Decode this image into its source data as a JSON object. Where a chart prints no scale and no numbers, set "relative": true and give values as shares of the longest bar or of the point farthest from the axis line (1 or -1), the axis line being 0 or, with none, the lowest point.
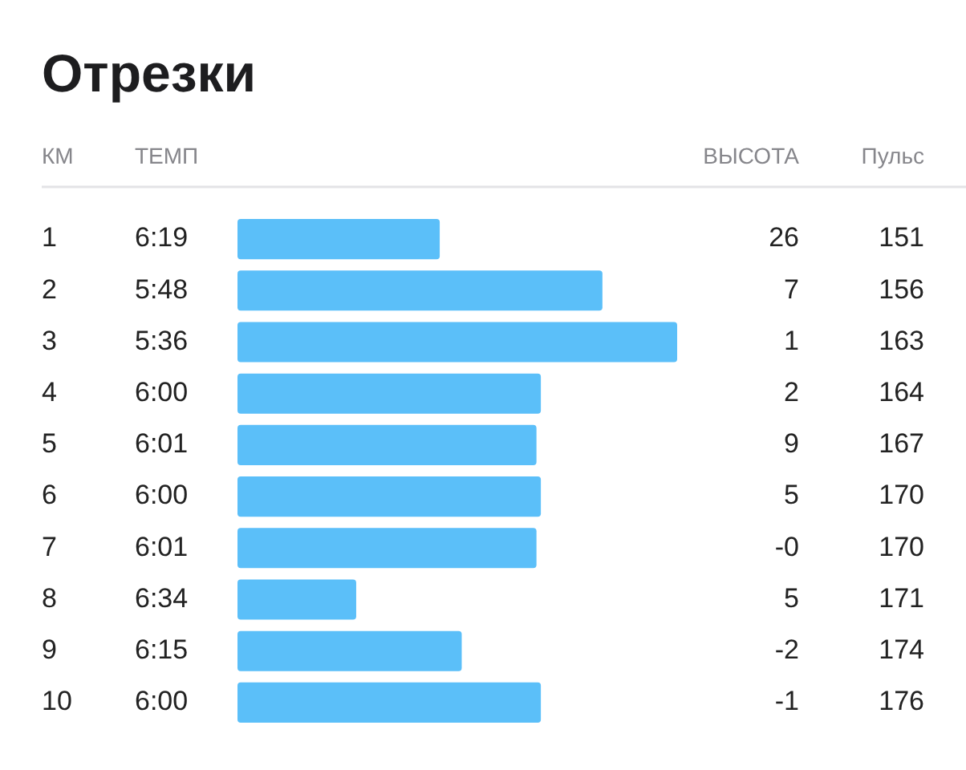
{
  "chart_data": {
    "type": "bar",
    "orientation": "horizontal",
    "relative": true,
    "title": "Отрезки",
    "ylabel": "КМ",
    "categories": [
      "1",
      "2",
      "3",
      "4",
      "5",
      "6",
      "7",
      "8",
      "9",
      "10"
    ],
    "values": [
      0.46,
      0.83,
      1,
      0.69,
      0.68,
      0.69,
      0.68,
      0.27,
      0.51,
      0.69
    ],
    "color": "#5bbff9",
    "annotations": [
      "ТЕМП",
      "6:19",
      "5:48",
      "5:36",
      "6:00",
      "6:01",
      "6:00",
      "6:01",
      "6:34",
      "6:15",
      "6:00",
      "ВЫСОТА",
      "26",
      "7",
      "1",
      "2",
      "9",
      "5",
      "-0",
      "5",
      "-2",
      "-1",
      "Пульс",
      "151",
      "156",
      "163",
      "164",
      "167",
      "170",
      "170",
      "171",
      "174",
      "176"
    ]
  }
}
